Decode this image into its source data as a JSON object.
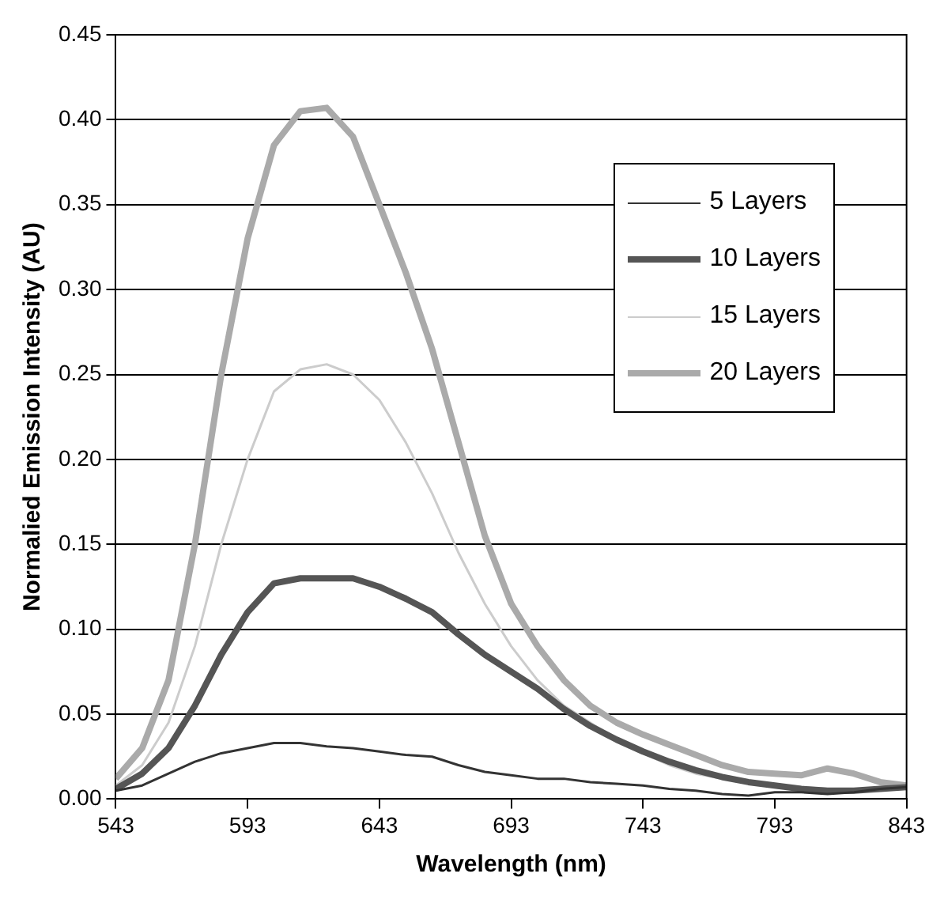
{
  "chart_data": {
    "type": "line",
    "xlabel": "Wavelength (nm)",
    "ylabel": "Normalied Emission Intensity (AU)",
    "x": [
      543,
      553,
      563,
      573,
      583,
      593,
      603,
      613,
      623,
      633,
      643,
      653,
      663,
      673,
      683,
      693,
      703,
      713,
      723,
      733,
      743,
      753,
      763,
      773,
      783,
      793,
      803,
      813,
      823,
      833,
      843
    ],
    "xlim": [
      543,
      843
    ],
    "xticks": [
      543,
      593,
      643,
      693,
      743,
      793,
      843
    ],
    "ylim": [
      0,
      0.45
    ],
    "yticks": [
      {
        "value": 0,
        "label": "0.00"
      },
      {
        "value": 0.05,
        "label": "0.05"
      },
      {
        "value": 0.1,
        "label": "0.10"
      },
      {
        "value": 0.15,
        "label": "0.15"
      },
      {
        "value": 0.2,
        "label": "0.20"
      },
      {
        "value": 0.25,
        "label": "0.25"
      },
      {
        "value": 0.3,
        "label": "0.30"
      },
      {
        "value": 0.35,
        "label": "0.35"
      },
      {
        "value": 0.4,
        "label": "0.40"
      },
      {
        "value": 0.45,
        "label": "0.45"
      }
    ],
    "grid": "y",
    "legend": "top right",
    "marker": "none",
    "line_style": "solid",
    "series": [
      {
        "name": "5 Layers",
        "color": "#333333",
        "values": [
          0.005,
          0.008,
          0.015,
          0.022,
          0.027,
          0.03,
          0.033,
          0.033,
          0.031,
          0.03,
          0.028,
          0.026,
          0.025,
          0.02,
          0.016,
          0.014,
          0.012,
          0.012,
          0.01,
          0.009,
          0.008,
          0.006,
          0.005,
          0.003,
          0.002,
          0.004,
          0.004,
          0.003,
          0.004,
          0.006,
          0.007
        ]
      },
      {
        "name": "10 Layers",
        "color": "#555555",
        "values": [
          0.006,
          0.015,
          0.03,
          0.055,
          0.085,
          0.11,
          0.127,
          0.13,
          0.13,
          0.13,
          0.125,
          0.118,
          0.11,
          0.097,
          0.085,
          0.075,
          0.065,
          0.053,
          0.043,
          0.035,
          0.028,
          0.022,
          0.017,
          0.013,
          0.01,
          0.008,
          0.006,
          0.005,
          0.005,
          0.006,
          0.007
        ]
      },
      {
        "name": "15 Layers",
        "color": "#cccccc",
        "values": [
          0.008,
          0.02,
          0.045,
          0.09,
          0.15,
          0.2,
          0.24,
          0.253,
          0.256,
          0.25,
          0.235,
          0.21,
          0.18,
          0.145,
          0.115,
          0.09,
          0.07,
          0.055,
          0.045,
          0.035,
          0.027,
          0.02,
          0.015,
          0.012,
          0.01,
          0.008,
          0.007,
          0.006,
          0.006,
          0.006,
          0.006
        ]
      },
      {
        "name": "20 Layers",
        "color": "#aaaaaa",
        "values": [
          0.012,
          0.03,
          0.07,
          0.15,
          0.25,
          0.33,
          0.385,
          0.405,
          0.407,
          0.39,
          0.35,
          0.31,
          0.265,
          0.21,
          0.155,
          0.115,
          0.09,
          0.07,
          0.055,
          0.045,
          0.038,
          0.032,
          0.026,
          0.02,
          0.016,
          0.015,
          0.014,
          0.018,
          0.015,
          0.01,
          0.008
        ]
      }
    ]
  }
}
